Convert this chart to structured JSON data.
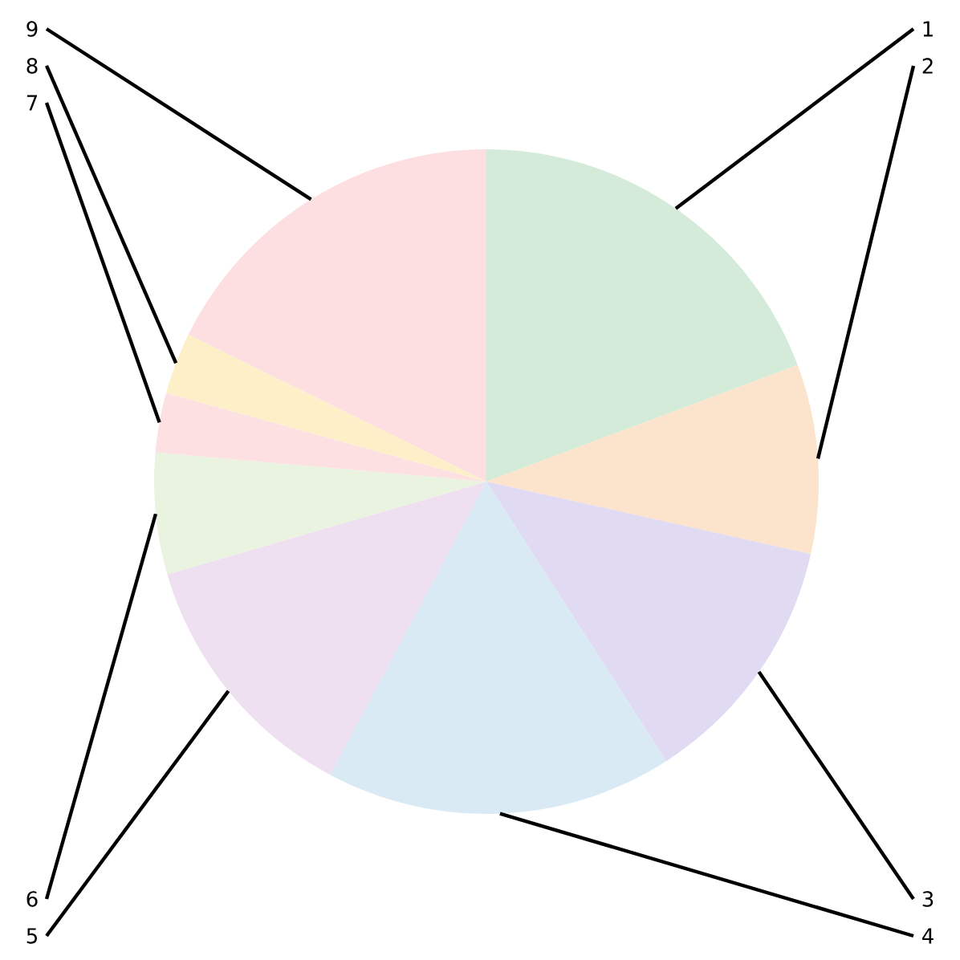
{
  "chart_data": {
    "type": "pie",
    "categories": [
      "1",
      "2",
      "3",
      "4",
      "5",
      "6",
      "7",
      "8",
      "9"
    ],
    "values": [
      19.3,
      9.2,
      12.4,
      16.9,
      12.7,
      5.9,
      2.9,
      3.0,
      17.7
    ],
    "colors": [
      "#d4ebda",
      "#fce3cb",
      "#e0daf2",
      "#d9eaf4",
      "#efe0f1",
      "#e9f3e0",
      "#fde0e2",
      "#fdf0c8",
      "#fddfe1"
    ]
  }
}
